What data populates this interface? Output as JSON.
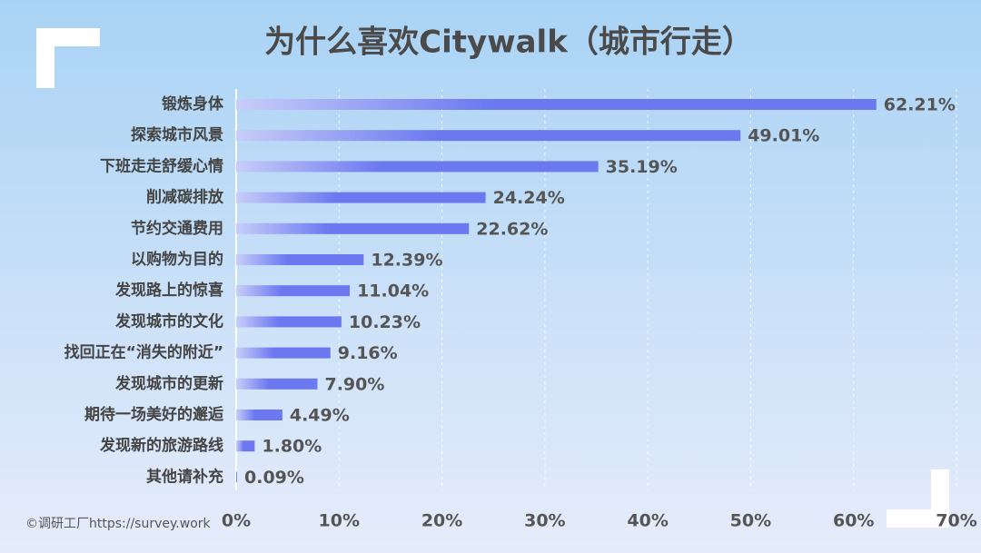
{
  "chart_data": {
    "type": "bar",
    "orientation": "horizontal",
    "title": "为什么喜欢Citywalk（城市行走）",
    "source": "©调研工厂https://survey.work",
    "categories": [
      "锻炼身体",
      "探索城市风景",
      "下班走走舒缓心情",
      "削减碳排放",
      "节约交通费用",
      "以购物为目的",
      "发现路上的惊喜",
      "发现城市的文化",
      "找回正在“消失的附近”",
      "发现城市的更新",
      "期待一场美好的邂逅",
      "发现新的旅游路线",
      "其他请补充"
    ],
    "values": [
      62.21,
      49.01,
      35.19,
      24.24,
      22.62,
      12.39,
      11.04,
      10.23,
      9.16,
      7.9,
      4.49,
      1.8,
      0.09
    ],
    "value_labels": [
      "62.21%",
      "49.01%",
      "35.19%",
      "24.24%",
      "22.62%",
      "12.39%",
      "11.04%",
      "10.23%",
      "9.16%",
      "7.90%",
      "4.49%",
      "1.80%",
      "0.09%"
    ],
    "color": "#6b78f0",
    "xlim": [
      0,
      70
    ],
    "xticks": [
      {
        "value": 0,
        "label": "0%"
      },
      {
        "value": 10,
        "label": "10%"
      },
      {
        "value": 20,
        "label": "20%"
      },
      {
        "value": 30,
        "label": "30%"
      },
      {
        "value": 40,
        "label": "40%"
      },
      {
        "value": 50,
        "label": "50%"
      },
      {
        "value": 60,
        "label": "60%"
      },
      {
        "value": 70,
        "label": "70%"
      }
    ],
    "grid": true
  }
}
